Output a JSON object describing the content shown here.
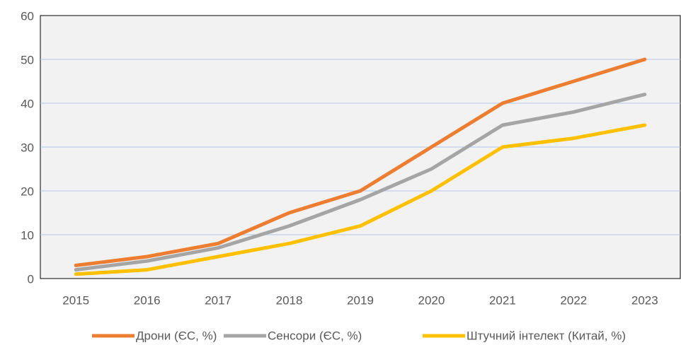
{
  "chart_data": {
    "type": "line",
    "categories": [
      "2015",
      "2016",
      "2017",
      "2018",
      "2019",
      "2020",
      "2021",
      "2022",
      "2023"
    ],
    "series": [
      {
        "name": "Дрони (ЄС, %)",
        "color": "#ed7d31",
        "values": [
          3,
          5,
          8,
          15,
          20,
          30,
          40,
          45,
          50
        ]
      },
      {
        "name": "Сенсори (ЄС, %)",
        "color": "#a5a5a5",
        "values": [
          2,
          4,
          7,
          12,
          18,
          25,
          35,
          38,
          42
        ]
      },
      {
        "name": "Штучний інтелект (Китай, %)",
        "color": "#ffc000",
        "values": [
          1,
          2,
          5,
          8,
          12,
          20,
          30,
          32,
          35
        ]
      }
    ],
    "ylim": [
      0,
      60
    ],
    "yticks": [
      0,
      10,
      20,
      30,
      40,
      50,
      60
    ],
    "grid": true,
    "legend": "bottom"
  }
}
